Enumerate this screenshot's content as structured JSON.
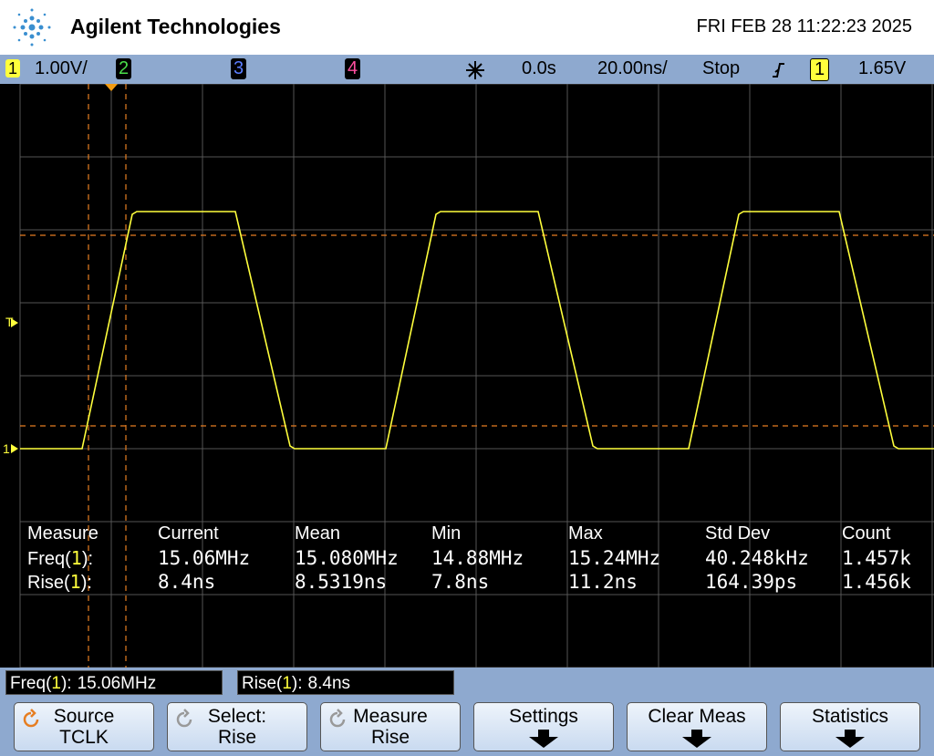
{
  "header": {
    "brand": "Agilent Technologies",
    "datetime": "FRI FEB 28 11:22:23 2025"
  },
  "status_bar": {
    "ch1": "1",
    "ch1_scale": "1.00V/",
    "ch2": "2",
    "ch3": "3",
    "ch4": "4",
    "delay": "0.0s",
    "timebase": "20.00ns/",
    "run_state": "Stop",
    "trigger_source": "1",
    "trigger_level": "1.65V"
  },
  "markers": {
    "trigger": "T",
    "ch1": "1"
  },
  "measurements": {
    "columns": [
      "Measure",
      "Current",
      "Mean",
      "Min",
      "Max",
      "Std Dev",
      "Count"
    ],
    "rows": [
      {
        "name": "Freq(",
        "channel": "1",
        "suffix": "):",
        "values": [
          "15.06MHz",
          "15.080MHz",
          "14.88MHz",
          "15.24MHz",
          "40.248kHz",
          "1.457k"
        ]
      },
      {
        "name": "Rise(",
        "channel": "1",
        "suffix": "):",
        "values": [
          "8.4ns",
          "8.5319ns",
          "7.8ns",
          "11.2ns",
          "164.39ps",
          "1.456k"
        ]
      }
    ]
  },
  "readouts": [
    {
      "name": "Freq(",
      "channel": "1",
      "suffix": "):",
      "value": "15.06MHz"
    },
    {
      "name": "Rise(",
      "channel": "1",
      "suffix": "):",
      "value": "8.4ns"
    }
  ],
  "softkeys": [
    {
      "label": "Source",
      "value": "TCLK"
    },
    {
      "label": "Select:",
      "value": "Rise"
    },
    {
      "label": "Measure",
      "value": "Rise"
    },
    {
      "label": "Settings"
    },
    {
      "label": "Clear Meas"
    },
    {
      "label": "Statistics"
    }
  ]
}
